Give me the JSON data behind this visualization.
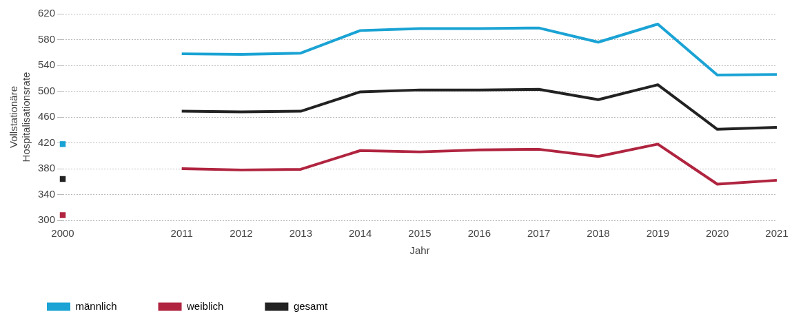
{
  "chart_data": {
    "type": "line",
    "xlabel": "Jahr",
    "ylabel": "Vollstationäre Hospitalisationsrate",
    "categories": [
      "2000",
      null,
      "2011",
      "2012",
      "2013",
      "2014",
      "2015",
      "2016",
      "2017",
      "2018",
      "2019",
      "2020",
      "2021"
    ],
    "series": [
      {
        "name": "männlich",
        "color": "#1aa3d4",
        "values": [
          418,
          null,
          558,
          557,
          559,
          594,
          597,
          597,
          598,
          576,
          604,
          525,
          526
        ]
      },
      {
        "name": "weiblich",
        "color": "#b0243f",
        "values": [
          308,
          null,
          380,
          378,
          379,
          408,
          406,
          409,
          410,
          399,
          418,
          356,
          362
        ]
      },
      {
        "name": "gesamt",
        "color": "#222222",
        "values": [
          364,
          null,
          469,
          468,
          469,
          499,
          502,
          502,
          503,
          487,
          510,
          441,
          444
        ]
      }
    ],
    "ylim": [
      300,
      620
    ],
    "yticks": [
      300,
      340,
      380,
      420,
      460,
      500,
      540,
      580,
      620
    ],
    "grid": "y",
    "legend": "bottom left"
  }
}
